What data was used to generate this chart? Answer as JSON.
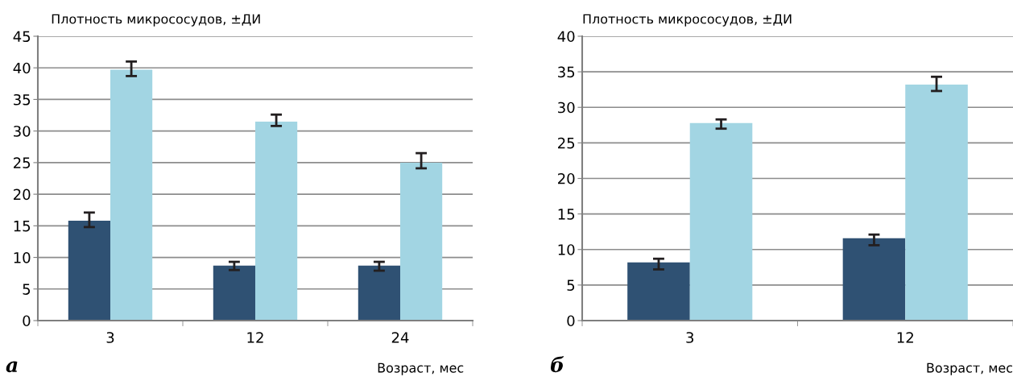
{
  "chart_data": [
    {
      "type": "bar",
      "ylabel": "Плотность микрососудов, ±ДИ",
      "xlabel": "Возраст, мес",
      "annotations": [
        "а"
      ],
      "categories": [
        "3",
        "12",
        "24"
      ],
      "ylim": [
        0,
        45
      ],
      "yticks": [
        0,
        5,
        10,
        15,
        20,
        25,
        30,
        35,
        40,
        45
      ],
      "grid": "y",
      "legend": false,
      "series": [
        {
          "color": "#2f5173",
          "values": [
            15.8,
            8.7,
            8.7
          ],
          "errors": [
            [
              14.8,
              17.1
            ],
            [
              8.0,
              9.3
            ],
            [
              7.9,
              9.3
            ]
          ]
        },
        {
          "color": "#a2d5e3",
          "values": [
            39.7,
            31.5,
            25.0
          ],
          "errors": [
            [
              38.7,
              41.0
            ],
            [
              30.8,
              32.6
            ],
            [
              24.1,
              26.5
            ]
          ]
        }
      ]
    },
    {
      "type": "bar",
      "ylabel": "Плотность микрососудов, ±ДИ",
      "xlabel": "Возраст, мес",
      "annotations": [
        "б"
      ],
      "categories": [
        "3",
        "12"
      ],
      "ylim": [
        0,
        40
      ],
      "yticks": [
        0,
        5,
        10,
        15,
        20,
        25,
        30,
        35,
        40
      ],
      "grid": "y",
      "legend": false,
      "series": [
        {
          "color": "#2f5173",
          "values": [
            8.2,
            11.6
          ],
          "errors": [
            [
              7.2,
              8.7
            ],
            [
              10.6,
              12.1
            ]
          ]
        },
        {
          "color": "#a2d5e3",
          "values": [
            27.8,
            33.2
          ],
          "errors": [
            [
              27.0,
              28.3
            ],
            [
              32.3,
              34.3
            ]
          ]
        }
      ]
    }
  ]
}
